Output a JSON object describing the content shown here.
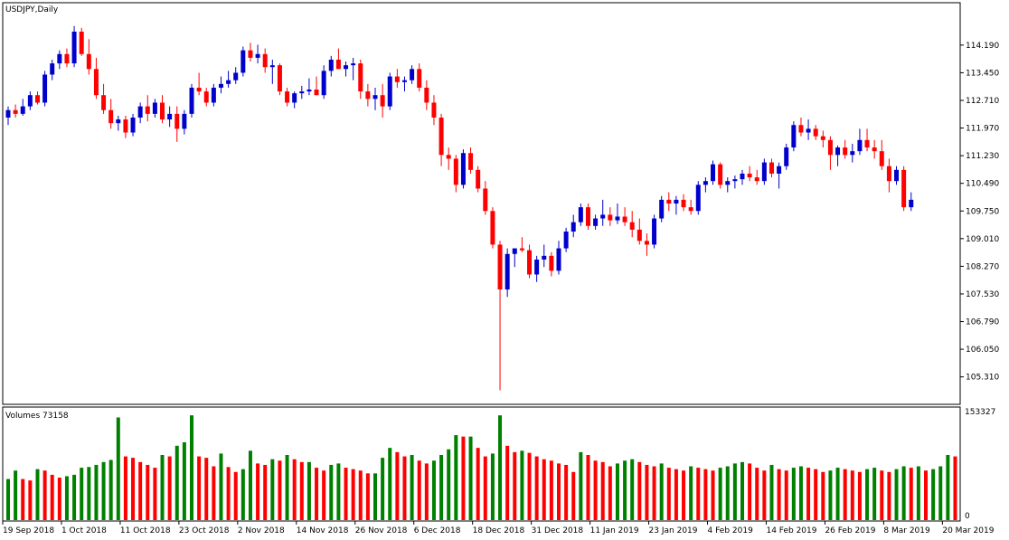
{
  "header": {
    "symbol": "USDJPY,Daily"
  },
  "volume_panel": {
    "label": "Volumes 73158",
    "max_label": "153327",
    "min_label": "0"
  },
  "colors": {
    "bull": "#0000cc",
    "bear": "#ff0000",
    "vol_up": "#008000",
    "vol_down": "#ff0000",
    "grid": "#000000"
  },
  "chart_data": {
    "type": "candlestick",
    "symbol": "USDJPY",
    "timeframe": "Daily",
    "price_axis_ticks": [
      "114.190",
      "113.450",
      "112.710",
      "111.970",
      "111.230",
      "110.490",
      "109.750",
      "109.010",
      "108.270",
      "107.530",
      "106.790",
      "106.050",
      "105.310"
    ],
    "ylim": [
      104.6,
      115.3
    ],
    "date_ticks": [
      {
        "label": "19 Sep 2018",
        "bar": 0
      },
      {
        "label": "1 Oct 2018",
        "bar": 8
      },
      {
        "label": "11 Oct 2018",
        "bar": 16
      },
      {
        "label": "23 Oct 2018",
        "bar": 24
      },
      {
        "label": "2 Nov 2018",
        "bar": 32
      },
      {
        "label": "14 Nov 2018",
        "bar": 40
      },
      {
        "label": "26 Nov 2018",
        "bar": 48
      },
      {
        "label": "6 Dec 2018",
        "bar": 56
      },
      {
        "label": "18 Dec 2018",
        "bar": 64
      },
      {
        "label": "31 Dec 2018",
        "bar": 72
      },
      {
        "label": "11 Jan 2019",
        "bar": 80
      },
      {
        "label": "23 Jan 2019",
        "bar": 88
      },
      {
        "label": "4 Feb 2019",
        "bar": 96
      },
      {
        "label": "14 Feb 2019",
        "bar": 104
      },
      {
        "label": "26 Feb 2019",
        "bar": 112
      },
      {
        "label": "8 Mar 2019",
        "bar": 120
      },
      {
        "label": "20 Mar 2019",
        "bar": 128
      }
    ],
    "candles": [
      {
        "o": 112.25,
        "h": 112.55,
        "l": 112.05,
        "c": 112.45
      },
      {
        "o": 112.45,
        "h": 112.6,
        "l": 112.25,
        "c": 112.35
      },
      {
        "o": 112.35,
        "h": 112.75,
        "l": 112.3,
        "c": 112.55
      },
      {
        "o": 112.55,
        "h": 112.95,
        "l": 112.45,
        "c": 112.85
      },
      {
        "o": 112.85,
        "h": 112.95,
        "l": 112.6,
        "c": 112.65
      },
      {
        "o": 112.65,
        "h": 113.5,
        "l": 112.55,
        "c": 113.4
      },
      {
        "o": 113.4,
        "h": 113.8,
        "l": 113.25,
        "c": 113.7
      },
      {
        "o": 113.7,
        "h": 114.05,
        "l": 113.55,
        "c": 113.95
      },
      {
        "o": 113.95,
        "h": 114.1,
        "l": 113.6,
        "c": 113.7
      },
      {
        "o": 113.7,
        "h": 114.7,
        "l": 113.6,
        "c": 114.55
      },
      {
        "o": 114.55,
        "h": 114.65,
        "l": 113.9,
        "c": 113.95
      },
      {
        "o": 113.95,
        "h": 114.35,
        "l": 113.4,
        "c": 113.55
      },
      {
        "o": 113.55,
        "h": 113.85,
        "l": 112.75,
        "c": 112.85
      },
      {
        "o": 112.85,
        "h": 113.15,
        "l": 112.35,
        "c": 112.45
      },
      {
        "o": 112.45,
        "h": 112.75,
        "l": 111.95,
        "c": 112.1
      },
      {
        "o": 112.1,
        "h": 112.3,
        "l": 111.9,
        "c": 112.2
      },
      {
        "o": 112.2,
        "h": 112.3,
        "l": 111.7,
        "c": 111.85
      },
      {
        "o": 111.85,
        "h": 112.35,
        "l": 111.75,
        "c": 112.25
      },
      {
        "o": 112.25,
        "h": 112.65,
        "l": 112.1,
        "c": 112.55
      },
      {
        "o": 112.55,
        "h": 112.85,
        "l": 112.15,
        "c": 112.35
      },
      {
        "o": 112.35,
        "h": 112.75,
        "l": 112.25,
        "c": 112.65
      },
      {
        "o": 112.65,
        "h": 112.85,
        "l": 112.1,
        "c": 112.2
      },
      {
        "o": 112.2,
        "h": 112.55,
        "l": 112.0,
        "c": 112.35
      },
      {
        "o": 112.35,
        "h": 112.55,
        "l": 111.6,
        "c": 111.95
      },
      {
        "o": 111.95,
        "h": 112.45,
        "l": 111.8,
        "c": 112.35
      },
      {
        "o": 112.35,
        "h": 113.15,
        "l": 112.25,
        "c": 113.05
      },
      {
        "o": 113.05,
        "h": 113.45,
        "l": 112.85,
        "c": 112.95
      },
      {
        "o": 112.95,
        "h": 113.05,
        "l": 112.55,
        "c": 112.65
      },
      {
        "o": 112.65,
        "h": 113.15,
        "l": 112.55,
        "c": 113.05
      },
      {
        "o": 113.05,
        "h": 113.35,
        "l": 112.9,
        "c": 113.15
      },
      {
        "o": 113.15,
        "h": 113.5,
        "l": 113.05,
        "c": 113.25
      },
      {
        "o": 113.25,
        "h": 113.6,
        "l": 113.15,
        "c": 113.45
      },
      {
        "o": 113.45,
        "h": 114.15,
        "l": 113.35,
        "c": 114.05
      },
      {
        "o": 114.05,
        "h": 114.25,
        "l": 113.75,
        "c": 113.85
      },
      {
        "o": 113.85,
        "h": 114.2,
        "l": 113.7,
        "c": 113.95
      },
      {
        "o": 113.95,
        "h": 114.1,
        "l": 113.45,
        "c": 113.6
      },
      {
        "o": 113.6,
        "h": 113.8,
        "l": 113.15,
        "c": 113.65
      },
      {
        "o": 113.65,
        "h": 113.7,
        "l": 112.85,
        "c": 112.95
      },
      {
        "o": 112.95,
        "h": 113.05,
        "l": 112.55,
        "c": 112.65
      },
      {
        "o": 112.65,
        "h": 112.95,
        "l": 112.5,
        "c": 112.9
      },
      {
        "o": 112.9,
        "h": 113.1,
        "l": 112.75,
        "c": 112.95
      },
      {
        "o": 112.95,
        "h": 113.3,
        "l": 112.85,
        "c": 113.0
      },
      {
        "o": 113.0,
        "h": 113.35,
        "l": 112.85,
        "c": 112.85
      },
      {
        "o": 112.85,
        "h": 113.65,
        "l": 112.75,
        "c": 113.5
      },
      {
        "o": 113.5,
        "h": 113.9,
        "l": 113.35,
        "c": 113.8
      },
      {
        "o": 113.8,
        "h": 114.1,
        "l": 113.55,
        "c": 113.55
      },
      {
        "o": 113.55,
        "h": 113.75,
        "l": 113.35,
        "c": 113.65
      },
      {
        "o": 113.65,
        "h": 113.85,
        "l": 113.25,
        "c": 113.7
      },
      {
        "o": 113.7,
        "h": 113.8,
        "l": 112.75,
        "c": 112.95
      },
      {
        "o": 112.95,
        "h": 113.15,
        "l": 112.55,
        "c": 112.75
      },
      {
        "o": 112.75,
        "h": 113.05,
        "l": 112.45,
        "c": 112.85
      },
      {
        "o": 112.85,
        "h": 113.15,
        "l": 112.25,
        "c": 112.55
      },
      {
        "o": 112.55,
        "h": 113.45,
        "l": 112.45,
        "c": 113.35
      },
      {
        "o": 113.35,
        "h": 113.55,
        "l": 113.05,
        "c": 113.2
      },
      {
        "o": 113.2,
        "h": 113.35,
        "l": 112.95,
        "c": 113.25
      },
      {
        "o": 113.25,
        "h": 113.65,
        "l": 113.15,
        "c": 113.55
      },
      {
        "o": 113.55,
        "h": 113.7,
        "l": 112.95,
        "c": 113.05
      },
      {
        "o": 113.05,
        "h": 113.25,
        "l": 112.45,
        "c": 112.65
      },
      {
        "o": 112.65,
        "h": 112.85,
        "l": 112.05,
        "c": 112.25
      },
      {
        "o": 112.25,
        "h": 112.35,
        "l": 110.95,
        "c": 111.25
      },
      {
        "o": 111.25,
        "h": 111.45,
        "l": 110.85,
        "c": 111.15
      },
      {
        "o": 111.15,
        "h": 111.25,
        "l": 110.25,
        "c": 110.45
      },
      {
        "o": 110.45,
        "h": 111.4,
        "l": 110.35,
        "c": 111.3
      },
      {
        "o": 111.3,
        "h": 111.45,
        "l": 110.75,
        "c": 110.85
      },
      {
        "o": 110.85,
        "h": 110.95,
        "l": 110.25,
        "c": 110.35
      },
      {
        "o": 110.35,
        "h": 110.55,
        "l": 109.65,
        "c": 109.75
      },
      {
        "o": 109.75,
        "h": 109.85,
        "l": 108.75,
        "c": 108.85
      },
      {
        "o": 108.85,
        "h": 108.95,
        "l": 104.95,
        "c": 107.65
      },
      {
        "o": 107.65,
        "h": 108.75,
        "l": 107.45,
        "c": 108.6
      },
      {
        "o": 108.6,
        "h": 108.75,
        "l": 108.25,
        "c": 108.75
      },
      {
        "o": 108.75,
        "h": 109.05,
        "l": 108.65,
        "c": 108.7
      },
      {
        "o": 108.7,
        "h": 108.85,
        "l": 107.95,
        "c": 108.05
      },
      {
        "o": 108.05,
        "h": 108.55,
        "l": 107.85,
        "c": 108.45
      },
      {
        "o": 108.45,
        "h": 108.85,
        "l": 108.25,
        "c": 108.55
      },
      {
        "o": 108.55,
        "h": 108.65,
        "l": 108.0,
        "c": 108.15
      },
      {
        "o": 108.15,
        "h": 108.95,
        "l": 108.05,
        "c": 108.75
      },
      {
        "o": 108.75,
        "h": 109.3,
        "l": 108.65,
        "c": 109.2
      },
      {
        "o": 109.2,
        "h": 109.65,
        "l": 109.05,
        "c": 109.45
      },
      {
        "o": 109.45,
        "h": 109.95,
        "l": 109.35,
        "c": 109.85
      },
      {
        "o": 109.85,
        "h": 109.95,
        "l": 109.25,
        "c": 109.35
      },
      {
        "o": 109.35,
        "h": 109.65,
        "l": 109.25,
        "c": 109.55
      },
      {
        "o": 109.55,
        "h": 110.05,
        "l": 109.35,
        "c": 109.65
      },
      {
        "o": 109.65,
        "h": 109.85,
        "l": 109.35,
        "c": 109.5
      },
      {
        "o": 109.5,
        "h": 109.95,
        "l": 109.4,
        "c": 109.6
      },
      {
        "o": 109.6,
        "h": 109.85,
        "l": 109.35,
        "c": 109.45
      },
      {
        "o": 109.45,
        "h": 109.75,
        "l": 109.05,
        "c": 109.25
      },
      {
        "o": 109.25,
        "h": 109.55,
        "l": 108.85,
        "c": 108.95
      },
      {
        "o": 108.95,
        "h": 109.15,
        "l": 108.55,
        "c": 108.85
      },
      {
        "o": 108.85,
        "h": 109.65,
        "l": 108.75,
        "c": 109.55
      },
      {
        "o": 109.55,
        "h": 110.15,
        "l": 109.45,
        "c": 110.05
      },
      {
        "o": 110.05,
        "h": 110.25,
        "l": 109.75,
        "c": 109.95
      },
      {
        "o": 109.95,
        "h": 110.15,
        "l": 109.65,
        "c": 110.05
      },
      {
        "o": 110.05,
        "h": 110.2,
        "l": 109.75,
        "c": 109.85
      },
      {
        "o": 109.85,
        "h": 110.05,
        "l": 109.65,
        "c": 109.75
      },
      {
        "o": 109.75,
        "h": 110.55,
        "l": 109.65,
        "c": 110.45
      },
      {
        "o": 110.45,
        "h": 110.65,
        "l": 110.25,
        "c": 110.55
      },
      {
        "o": 110.55,
        "h": 111.1,
        "l": 110.45,
        "c": 111.0
      },
      {
        "o": 111.0,
        "h": 111.05,
        "l": 110.35,
        "c": 110.45
      },
      {
        "o": 110.45,
        "h": 110.65,
        "l": 110.25,
        "c": 110.55
      },
      {
        "o": 110.55,
        "h": 110.7,
        "l": 110.35,
        "c": 110.6
      },
      {
        "o": 110.6,
        "h": 110.85,
        "l": 110.45,
        "c": 110.75
      },
      {
        "o": 110.75,
        "h": 110.95,
        "l": 110.55,
        "c": 110.65
      },
      {
        "o": 110.65,
        "h": 110.85,
        "l": 110.45,
        "c": 110.55
      },
      {
        "o": 110.55,
        "h": 111.15,
        "l": 110.45,
        "c": 111.05
      },
      {
        "o": 111.05,
        "h": 111.15,
        "l": 110.65,
        "c": 110.75
      },
      {
        "o": 110.75,
        "h": 111.05,
        "l": 110.35,
        "c": 110.95
      },
      {
        "o": 110.95,
        "h": 111.55,
        "l": 110.85,
        "c": 111.45
      },
      {
        "o": 111.45,
        "h": 112.15,
        "l": 111.35,
        "c": 112.05
      },
      {
        "o": 112.05,
        "h": 112.25,
        "l": 111.75,
        "c": 111.85
      },
      {
        "o": 111.85,
        "h": 112.2,
        "l": 111.65,
        "c": 111.95
      },
      {
        "o": 111.95,
        "h": 112.05,
        "l": 111.65,
        "c": 111.75
      },
      {
        "o": 111.75,
        "h": 111.9,
        "l": 111.45,
        "c": 111.65
      },
      {
        "o": 111.65,
        "h": 111.75,
        "l": 110.85,
        "c": 111.25
      },
      {
        "o": 111.25,
        "h": 111.5,
        "l": 110.95,
        "c": 111.45
      },
      {
        "o": 111.45,
        "h": 111.65,
        "l": 111.15,
        "c": 111.25
      },
      {
        "o": 111.25,
        "h": 111.55,
        "l": 111.05,
        "c": 111.35
      },
      {
        "o": 111.35,
        "h": 111.95,
        "l": 111.25,
        "c": 111.65
      },
      {
        "o": 111.65,
        "h": 111.95,
        "l": 111.35,
        "c": 111.45
      },
      {
        "o": 111.45,
        "h": 111.65,
        "l": 111.15,
        "c": 111.35
      },
      {
        "o": 111.35,
        "h": 111.65,
        "l": 110.85,
        "c": 110.95
      },
      {
        "o": 110.95,
        "h": 111.15,
        "l": 110.25,
        "c": 110.55
      },
      {
        "o": 110.55,
        "h": 110.95,
        "l": 110.45,
        "c": 110.85
      },
      {
        "o": 110.85,
        "h": 110.95,
        "l": 109.75,
        "c": 109.85
      },
      {
        "o": 109.85,
        "h": 110.25,
        "l": 109.75,
        "c": 110.05
      }
    ],
    "volumes": [
      58000,
      70000,
      58000,
      56000,
      72000,
      70000,
      64000,
      60000,
      62000,
      64000,
      74000,
      75000,
      78000,
      82000,
      85000,
      145000,
      90000,
      88000,
      82000,
      78000,
      74000,
      92000,
      90000,
      105000,
      110000,
      148000,
      90000,
      88000,
      76000,
      94000,
      75000,
      68000,
      72000,
      98000,
      80000,
      78000,
      86000,
      84000,
      92000,
      86000,
      82000,
      82000,
      74000,
      70000,
      78000,
      80000,
      74000,
      72000,
      70000,
      66000,
      66000,
      88000,
      102000,
      96000,
      90000,
      92000,
      84000,
      80000,
      84000,
      92000,
      100000,
      120000,
      118000,
      118000,
      102000,
      90000,
      94000,
      148000,
      105000,
      96000,
      98000,
      95000,
      90000,
      86000,
      84000,
      80000,
      78000,
      68000,
      96000,
      92000,
      84000,
      82000,
      76000,
      80000,
      84000,
      86000,
      82000,
      78000,
      76000,
      80000,
      74000,
      72000,
      70000,
      76000,
      74000,
      72000,
      70000,
      74000,
      76000,
      80000,
      82000,
      80000,
      74000,
      70000,
      78000,
      72000,
      70000,
      74000,
      76000,
      74000,
      72000,
      68000,
      70000,
      74000,
      72000,
      70000,
      68000,
      72000,
      74000,
      70000,
      68000,
      72000,
      76000,
      74000,
      76000,
      70000,
      72000,
      76000,
      92000,
      90000
    ]
  }
}
